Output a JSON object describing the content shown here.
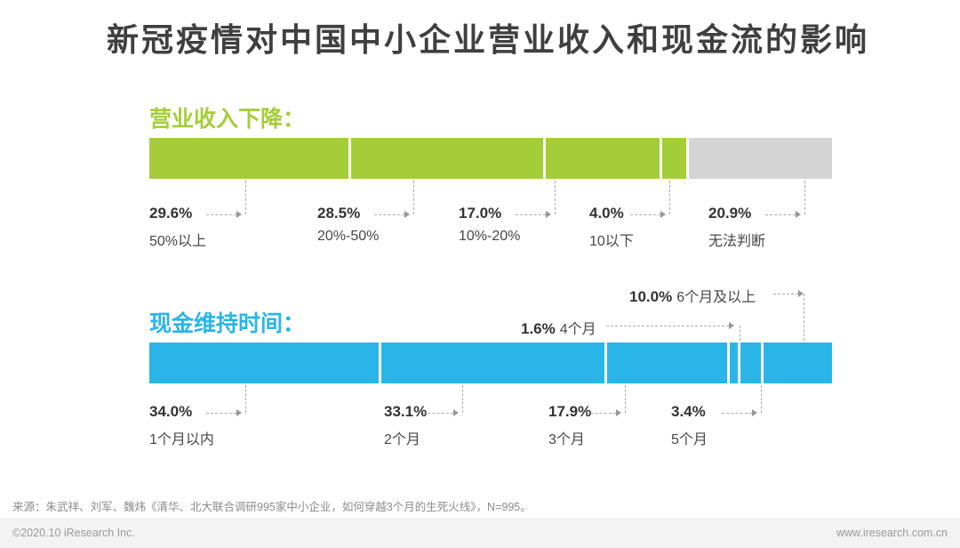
{
  "title": "新冠疫情对中国中小企业营业收入和现金流的影响",
  "chart_data": [
    {
      "type": "bar",
      "subtype": "horizontal-stacked",
      "title": "营业收入下降：",
      "unit": "%",
      "bar_color": "#a5cd39",
      "categories": [
        "50%以上",
        "20%-50%",
        "10%-20%",
        "10以下",
        "无法判断"
      ],
      "values": [
        29.6,
        28.5,
        17.0,
        4.0,
        20.9
      ],
      "labels": [
        "29.6%",
        "28.5%",
        "17.0%",
        "4.0%",
        "20.9%"
      ],
      "segment_colors": [
        "#a5cd39",
        "#a5cd39",
        "#a5cd39",
        "#a5cd39",
        "#d4d4d4"
      ],
      "xlim": [
        0,
        100
      ],
      "legend": "none"
    },
    {
      "type": "bar",
      "subtype": "horizontal-stacked",
      "title": "现金维持时间：",
      "unit": "%",
      "bar_color": "#29b5e8",
      "categories": [
        "1个月以内",
        "2个月",
        "3个月",
        "4个月",
        "5个月",
        "6个月及以上"
      ],
      "values": [
        34.0,
        33.1,
        17.9,
        1.6,
        3.4,
        10.0
      ],
      "labels": [
        "34.0%",
        "33.1%",
        "17.9%",
        "1.6%",
        "3.4%",
        "10.0%"
      ],
      "segment_colors": [
        "#29b5e8",
        "#29b5e8",
        "#29b5e8",
        "#29b5e8",
        "#29b5e8",
        "#29b5e8"
      ],
      "xlim": [
        0,
        100
      ],
      "legend": "none"
    }
  ],
  "source": "来源：朱武祥、刘军、魏炜《清华、北大联合调研995家中小企业，如何穿越3个月的生死火线》，N=995。",
  "footer": {
    "left": "©2020.10 iResearch Inc.",
    "right": "www.iresearch.com.cn"
  },
  "colors": {
    "title": "#3f3f3f",
    "revenue_accent": "#a5cd39",
    "cash_accent": "#29b5e8",
    "unknown_gray": "#d4d4d4",
    "connector": "#a9a9a9"
  }
}
